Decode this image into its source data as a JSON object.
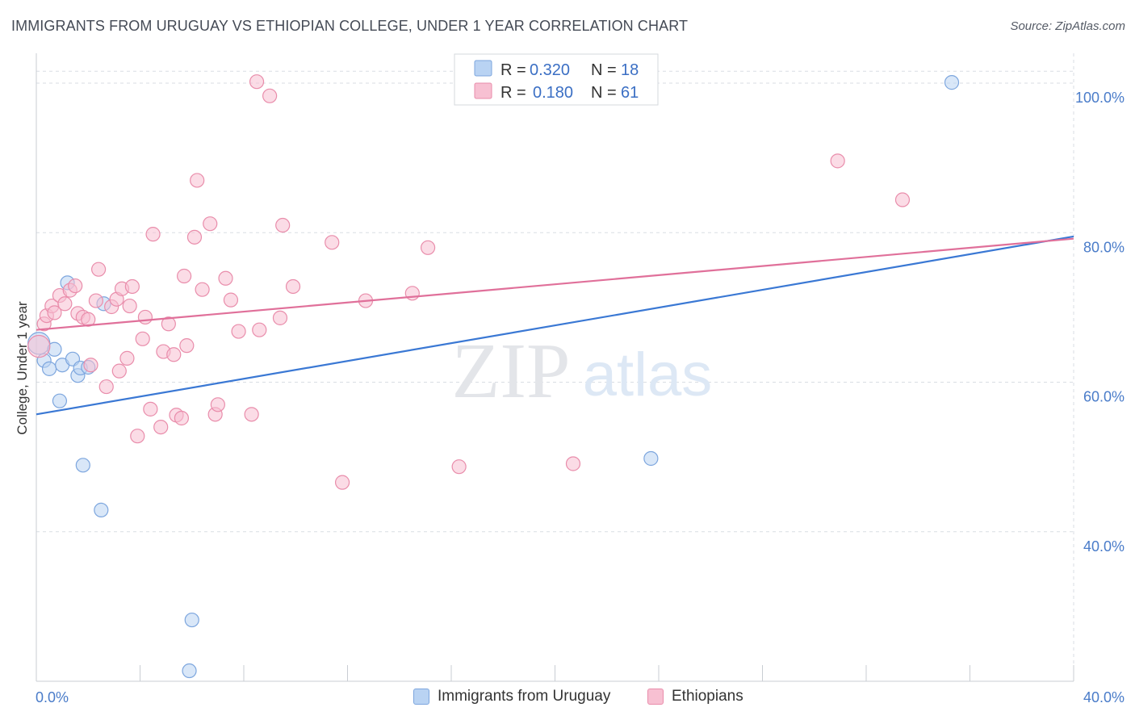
{
  "title": "IMMIGRANTS FROM URUGUAY VS ETHIOPIAN COLLEGE, UNDER 1 YEAR CORRELATION CHART",
  "source": "Source: ZipAtlas.com",
  "colors": {
    "blue_fill": "#b9d3f3",
    "blue_stroke": "#7da6de",
    "blue_line": "#3a78d4",
    "pink_fill": "#f7c0d2",
    "pink_stroke": "#e98dab",
    "pink_line": "#e0709a",
    "tick_text": "#4a7cc9",
    "grid": "#d9dde3"
  },
  "legend": {
    "r_label": "R =",
    "n_label": "N =",
    "series": [
      {
        "r": "0.320",
        "n": "18"
      },
      {
        "r": "0.180",
        "n": "61"
      }
    ]
  },
  "watermark": {
    "zip": "ZIP",
    "atlas": "atlas"
  },
  "chart_data": {
    "type": "scatter",
    "title": "IMMIGRANTS FROM URUGUAY VS ETHIOPIAN COLLEGE, UNDER 1 YEAR CORRELATION CHART",
    "xlabel": "",
    "ylabel": "College, Under 1 year",
    "xlim": [
      0,
      40
    ],
    "ylim": [
      20,
      104
    ],
    "x_ticks": [
      {
        "v": 0,
        "label": "0.0%"
      },
      {
        "v": 40,
        "label": "40.0%"
      }
    ],
    "x_minor_ticks": [
      4,
      8,
      12,
      16,
      20,
      24,
      28,
      32,
      36
    ],
    "y_ticks": [
      {
        "v": 40,
        "label": "40.0%"
      },
      {
        "v": 60,
        "label": "60.0%"
      },
      {
        "v": 80,
        "label": "80.0%"
      },
      {
        "v": 100,
        "label": "100.0%"
      }
    ],
    "grid": true,
    "legend_position": "top-center",
    "series": [
      {
        "name": "Immigrants from Uruguay",
        "color": "blue",
        "trend": {
          "x0": 0,
          "y0": 55.7,
          "x1": 40,
          "y1": 79.5
        },
        "points": [
          {
            "x": 0.1,
            "y": 65.2,
            "s": 1.6
          },
          {
            "x": 0.3,
            "y": 62.9
          },
          {
            "x": 0.5,
            "y": 61.8
          },
          {
            "x": 0.7,
            "y": 64.4
          },
          {
            "x": 0.9,
            "y": 57.5
          },
          {
            "x": 1.0,
            "y": 62.3
          },
          {
            "x": 1.2,
            "y": 73.3
          },
          {
            "x": 1.4,
            "y": 63.1
          },
          {
            "x": 1.6,
            "y": 60.9
          },
          {
            "x": 1.7,
            "y": 61.9
          },
          {
            "x": 1.8,
            "y": 48.9
          },
          {
            "x": 2.0,
            "y": 62.0
          },
          {
            "x": 2.5,
            "y": 42.9
          },
          {
            "x": 2.6,
            "y": 70.5
          },
          {
            "x": 6.0,
            "y": 28.2
          },
          {
            "x": 5.9,
            "y": 21.4
          },
          {
            "x": 23.7,
            "y": 49.8
          },
          {
            "x": 35.3,
            "y": 100.1
          }
        ]
      },
      {
        "name": "Ethiopians",
        "color": "pink",
        "trend": {
          "x0": 0,
          "y0": 67.0,
          "x1": 40,
          "y1": 79.2
        },
        "points": [
          {
            "x": 0.1,
            "y": 64.8,
            "s": 1.6
          },
          {
            "x": 0.3,
            "y": 67.8
          },
          {
            "x": 0.4,
            "y": 68.9
          },
          {
            "x": 0.6,
            "y": 70.2
          },
          {
            "x": 0.7,
            "y": 69.3
          },
          {
            "x": 0.9,
            "y": 71.6
          },
          {
            "x": 1.1,
            "y": 70.5
          },
          {
            "x": 1.3,
            "y": 72.3
          },
          {
            "x": 1.5,
            "y": 72.9
          },
          {
            "x": 1.6,
            "y": 69.2
          },
          {
            "x": 1.8,
            "y": 68.7
          },
          {
            "x": 2.0,
            "y": 68.4
          },
          {
            "x": 2.1,
            "y": 62.3
          },
          {
            "x": 2.3,
            "y": 70.9
          },
          {
            "x": 2.4,
            "y": 75.1
          },
          {
            "x": 2.7,
            "y": 59.4
          },
          {
            "x": 2.9,
            "y": 70.1
          },
          {
            "x": 3.1,
            "y": 71.1
          },
          {
            "x": 3.2,
            "y": 61.5
          },
          {
            "x": 3.3,
            "y": 72.5
          },
          {
            "x": 3.5,
            "y": 63.2
          },
          {
            "x": 3.6,
            "y": 70.2
          },
          {
            "x": 3.7,
            "y": 72.8
          },
          {
            "x": 3.9,
            "y": 52.8
          },
          {
            "x": 4.1,
            "y": 65.8
          },
          {
            "x": 4.2,
            "y": 68.7
          },
          {
            "x": 4.4,
            "y": 56.4
          },
          {
            "x": 4.5,
            "y": 79.8
          },
          {
            "x": 4.8,
            "y": 54.0
          },
          {
            "x": 4.9,
            "y": 64.1
          },
          {
            "x": 5.1,
            "y": 67.8
          },
          {
            "x": 5.3,
            "y": 63.7
          },
          {
            "x": 5.4,
            "y": 55.6
          },
          {
            "x": 5.6,
            "y": 55.2
          },
          {
            "x": 5.7,
            "y": 74.2
          },
          {
            "x": 5.8,
            "y": 64.9
          },
          {
            "x": 6.1,
            "y": 79.4
          },
          {
            "x": 6.2,
            "y": 87.0
          },
          {
            "x": 6.4,
            "y": 72.4
          },
          {
            "x": 6.7,
            "y": 81.2
          },
          {
            "x": 6.9,
            "y": 55.7
          },
          {
            "x": 7.0,
            "y": 57.0
          },
          {
            "x": 7.3,
            "y": 73.9
          },
          {
            "x": 7.5,
            "y": 71.0
          },
          {
            "x": 7.8,
            "y": 66.8
          },
          {
            "x": 8.3,
            "y": 55.7
          },
          {
            "x": 8.5,
            "y": 100.2
          },
          {
            "x": 8.6,
            "y": 67.0
          },
          {
            "x": 9.0,
            "y": 98.3
          },
          {
            "x": 9.4,
            "y": 68.6
          },
          {
            "x": 9.5,
            "y": 81.0
          },
          {
            "x": 9.9,
            "y": 72.8
          },
          {
            "x": 11.4,
            "y": 78.7
          },
          {
            "x": 11.8,
            "y": 46.6
          },
          {
            "x": 12.7,
            "y": 70.9
          },
          {
            "x": 14.5,
            "y": 71.9
          },
          {
            "x": 15.1,
            "y": 78.0
          },
          {
            "x": 16.3,
            "y": 48.7
          },
          {
            "x": 20.7,
            "y": 49.1
          },
          {
            "x": 30.9,
            "y": 89.6
          },
          {
            "x": 33.4,
            "y": 84.4
          }
        ]
      }
    ]
  },
  "bottom_legend": [
    {
      "label": "Immigrants from Uruguay"
    },
    {
      "label": "Ethiopians"
    }
  ]
}
